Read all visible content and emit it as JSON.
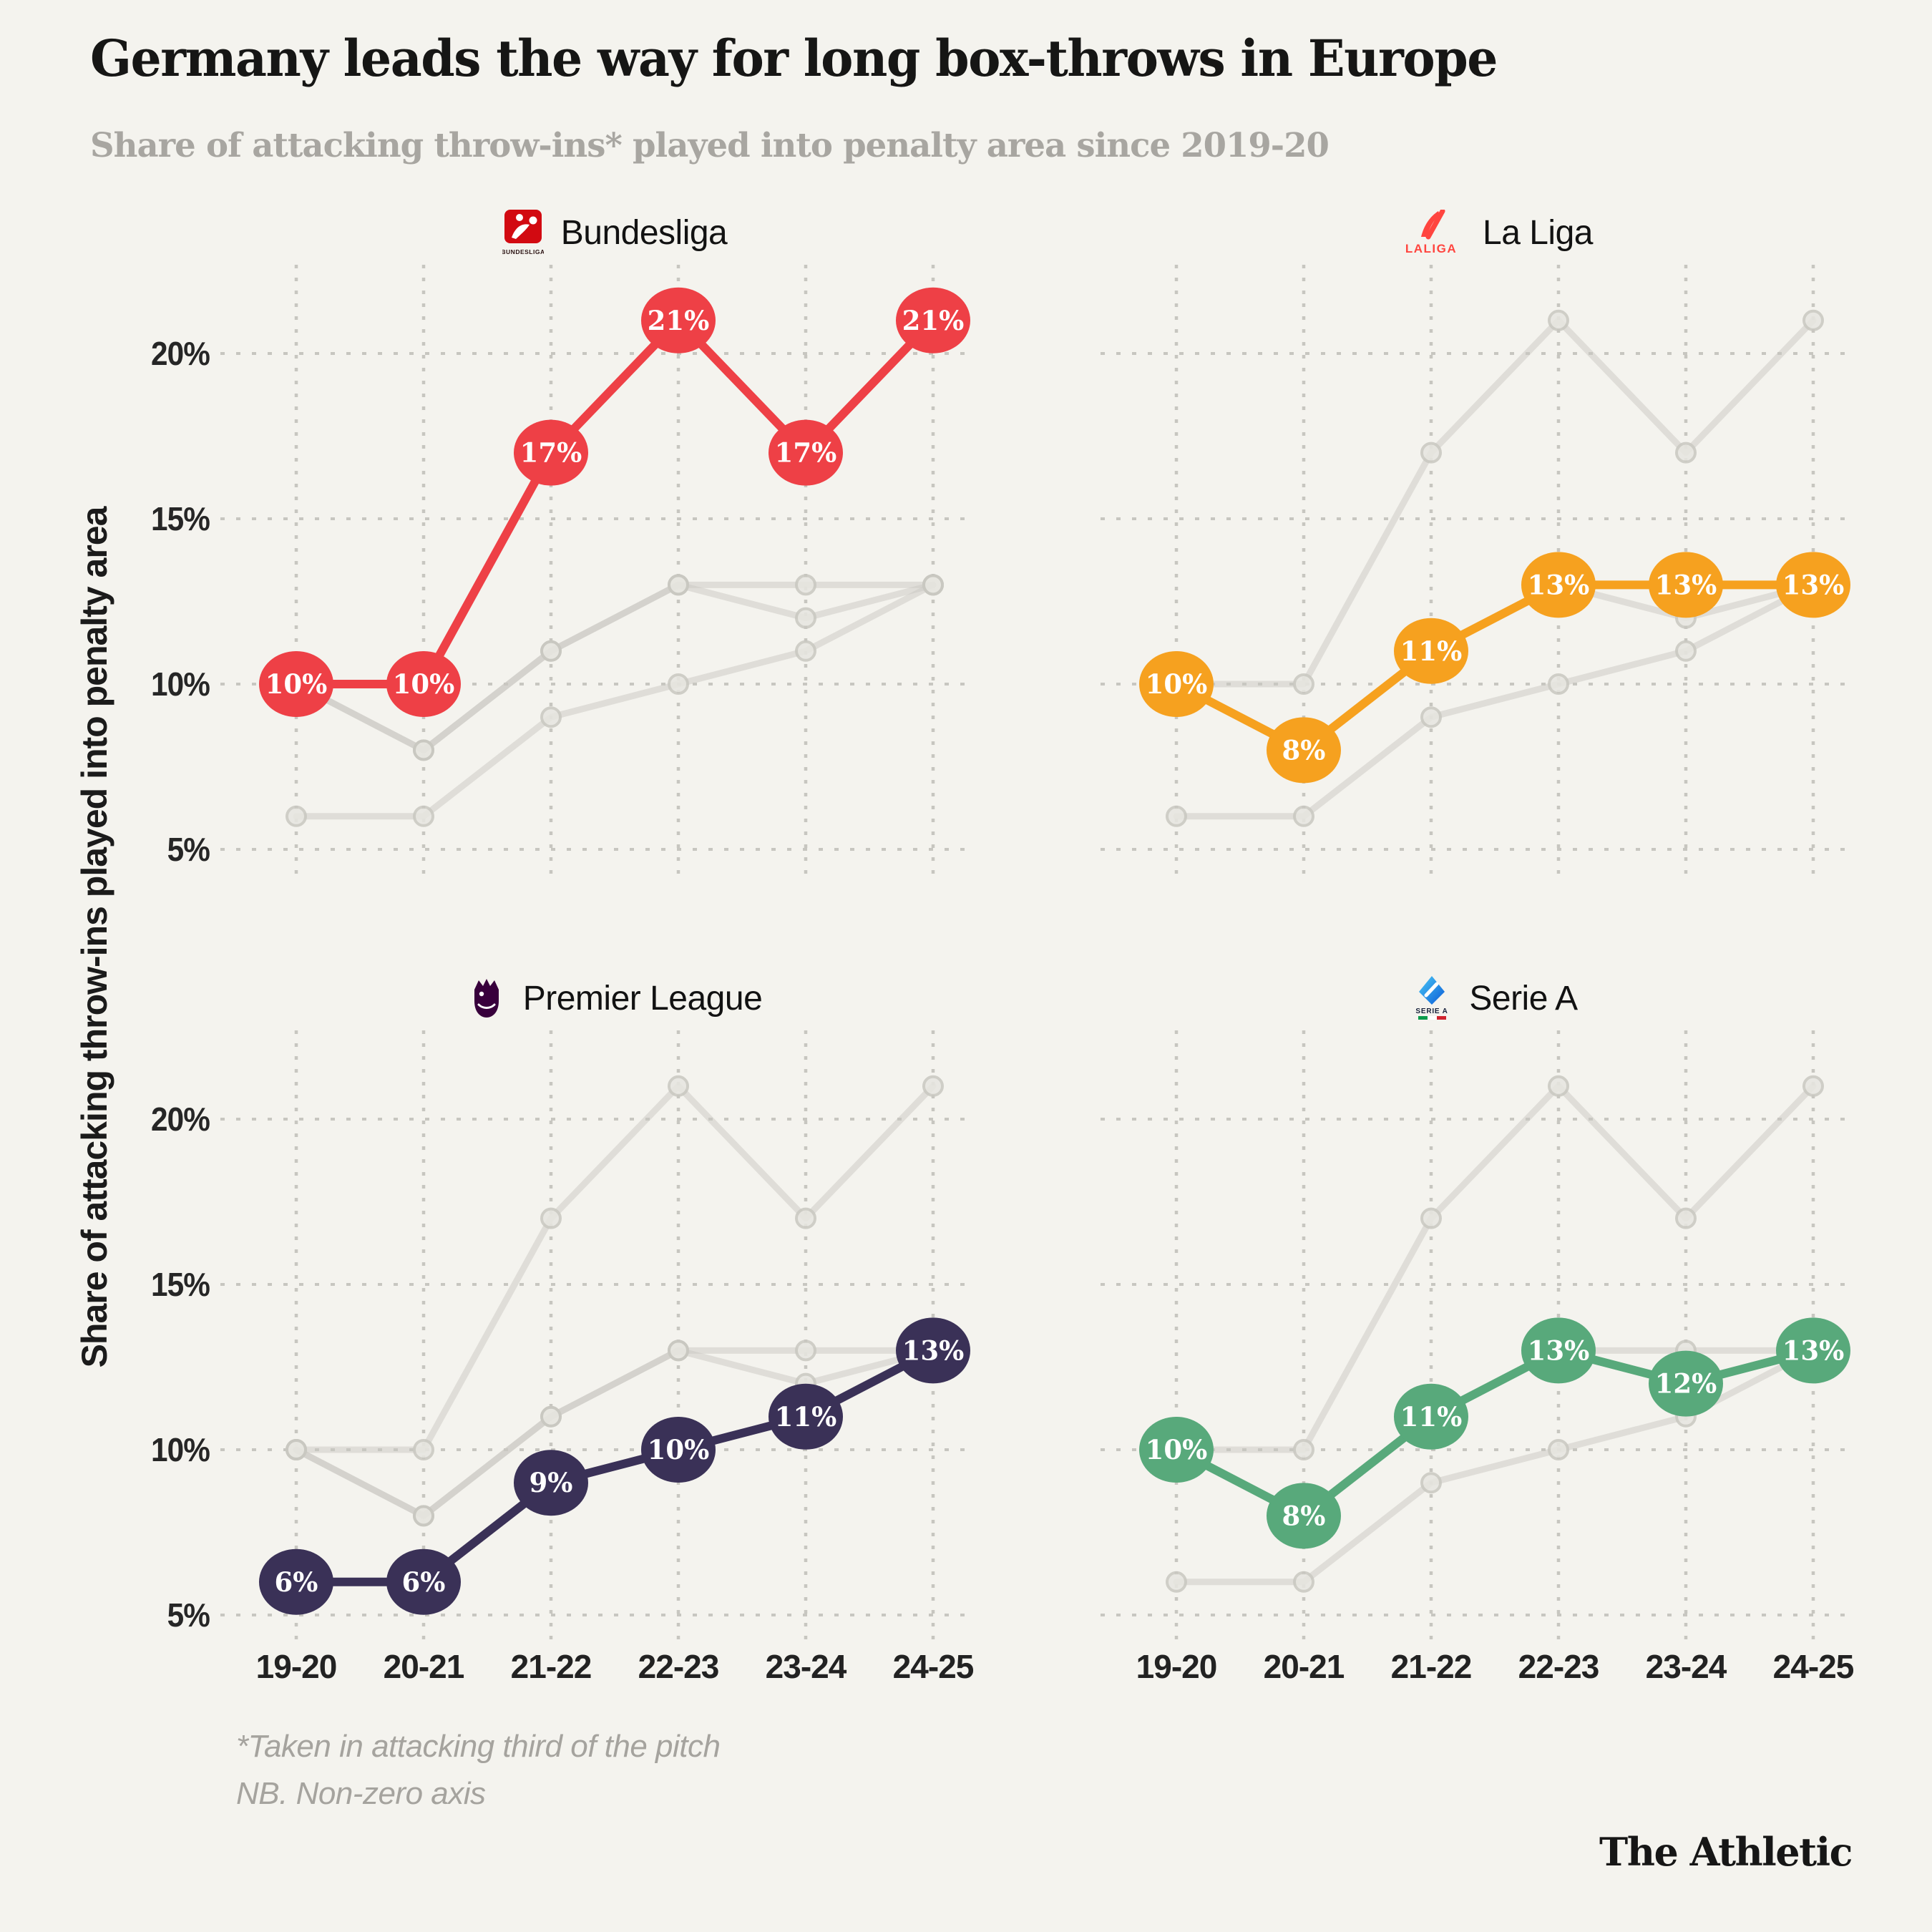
{
  "title": "Germany leads the way for long box-throws in Europe",
  "subtitle": "Share of attacking throw-ins* played into penalty area since 2019-20",
  "footnote": {
    "line1": "*Taken in attacking third of the pitch",
    "line2": "NB. Non-zero axis"
  },
  "brand": "The Athletic",
  "colors": {
    "background": "#f4f3ee",
    "gridline": "#c7c6c0",
    "gray_series_line": "#c9c8c1",
    "gray_series_dot": "#e7e6e0",
    "tick_text": "#262626",
    "title_text": "#161615",
    "subtitle_text": "#a8a6a1",
    "footnote_text": "#a5a39e",
    "value_label_text": "#ffffff"
  },
  "axis": {
    "y_axis_title": "Share of attacking throw-ins played into penalty area",
    "y_ticks": [
      "20%",
      "15%",
      "10%",
      "5%"
    ],
    "y_tick_values": [
      20,
      15,
      10,
      5
    ],
    "x_labels": [
      "19-20",
      "20-21",
      "21-22",
      "22-23",
      "23-24",
      "24-25"
    ]
  },
  "chart_data": {
    "type": "line",
    "unit": "%",
    "categories": [
      "19-20",
      "20-21",
      "21-22",
      "22-23",
      "23-24",
      "24-25"
    ],
    "ylim": [
      4,
      22
    ],
    "grid": "dotted",
    "legend_position": "per-panel-header",
    "series": [
      {
        "name": "Bundesliga",
        "color": "#ee4046",
        "values": [
          10,
          10,
          17,
          21,
          17,
          21
        ]
      },
      {
        "name": "La Liga",
        "color": "#f6a11f",
        "values": [
          10,
          8,
          11,
          13,
          13,
          13
        ]
      },
      {
        "name": "Premier League",
        "color": "#3a3157",
        "values": [
          6,
          6,
          9,
          10,
          11,
          13
        ]
      },
      {
        "name": "Serie A",
        "color": "#58a97b",
        "values": [
          10,
          8,
          11,
          13,
          12,
          13
        ]
      }
    ],
    "panels": [
      {
        "label": "Bundesliga",
        "series": "Bundesliga",
        "icon": "bundesliga-logo",
        "show_x_labels": false,
        "show_y_labels": true
      },
      {
        "label": "La Liga",
        "series": "La Liga",
        "icon": "laliga-logo",
        "show_x_labels": false,
        "show_y_labels": false
      },
      {
        "label": "Premier League",
        "series": "Premier League",
        "icon": "premier-league-logo",
        "show_x_labels": true,
        "show_y_labels": true
      },
      {
        "label": "Serie A",
        "series": "Serie A",
        "icon": "serie-a-logo",
        "show_x_labels": true,
        "show_y_labels": false
      }
    ]
  }
}
